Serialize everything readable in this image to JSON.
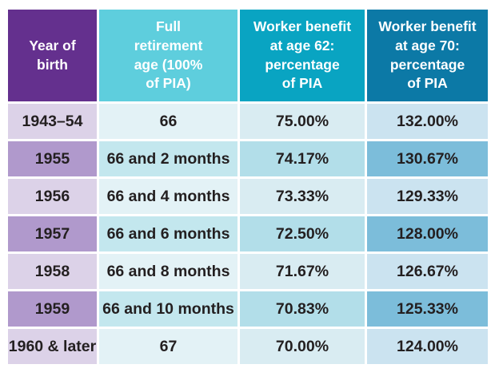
{
  "table": {
    "header_labels": [
      "Year of\nbirth",
      "Full\nretirement\nage (100%\nof PIA)",
      "Worker benefit\nat age 62:\npercentage\nof PIA",
      "Worker benefit\nat age 70:\npercentage\nof PIA"
    ]
  },
  "chart_data": {
    "type": "table",
    "columns": [
      "Year of birth",
      "Full retirement age (100% of PIA)",
      "Worker benefit at age 62: percentage of PIA",
      "Worker benefit at age 70: percentage of PIA"
    ],
    "rows": [
      [
        "1943–54",
        "66",
        "75.00%",
        "132.00%"
      ],
      [
        "1955",
        "66 and 2 months",
        "74.17%",
        "130.67%"
      ],
      [
        "1956",
        "66 and 4 months",
        "73.33%",
        "129.33%"
      ],
      [
        "1957",
        "66 and 6 months",
        "72.50%",
        "128.00%"
      ],
      [
        "1958",
        "66 and 8 months",
        "71.67%",
        "126.67%"
      ],
      [
        "1959",
        "66 and 10 months",
        "70.83%",
        "125.33%"
      ],
      [
        "1960 & later",
        "67",
        "70.00%",
        "124.00%"
      ]
    ]
  },
  "colors": {
    "header_year_of_birth": "#64308e",
    "header_full_retirement_age": "#5ecedd",
    "header_benefit_62": "#09a4c2",
    "header_benefit_70": "#0c79a6",
    "col_year_light": "#dcd2e8",
    "col_year_dark": "#b099cc",
    "col_fra_light": "#e3f2f6",
    "col_fra_dark": "#c3e7ee",
    "col_62_light": "#d9ecf2",
    "col_62_dark": "#b2dee9",
    "col_70_light": "#cbe3f0",
    "col_70_dark": "#7cbdda",
    "body_text": "#231f20",
    "header_text": "#ffffff",
    "gap": "#ffffff"
  }
}
